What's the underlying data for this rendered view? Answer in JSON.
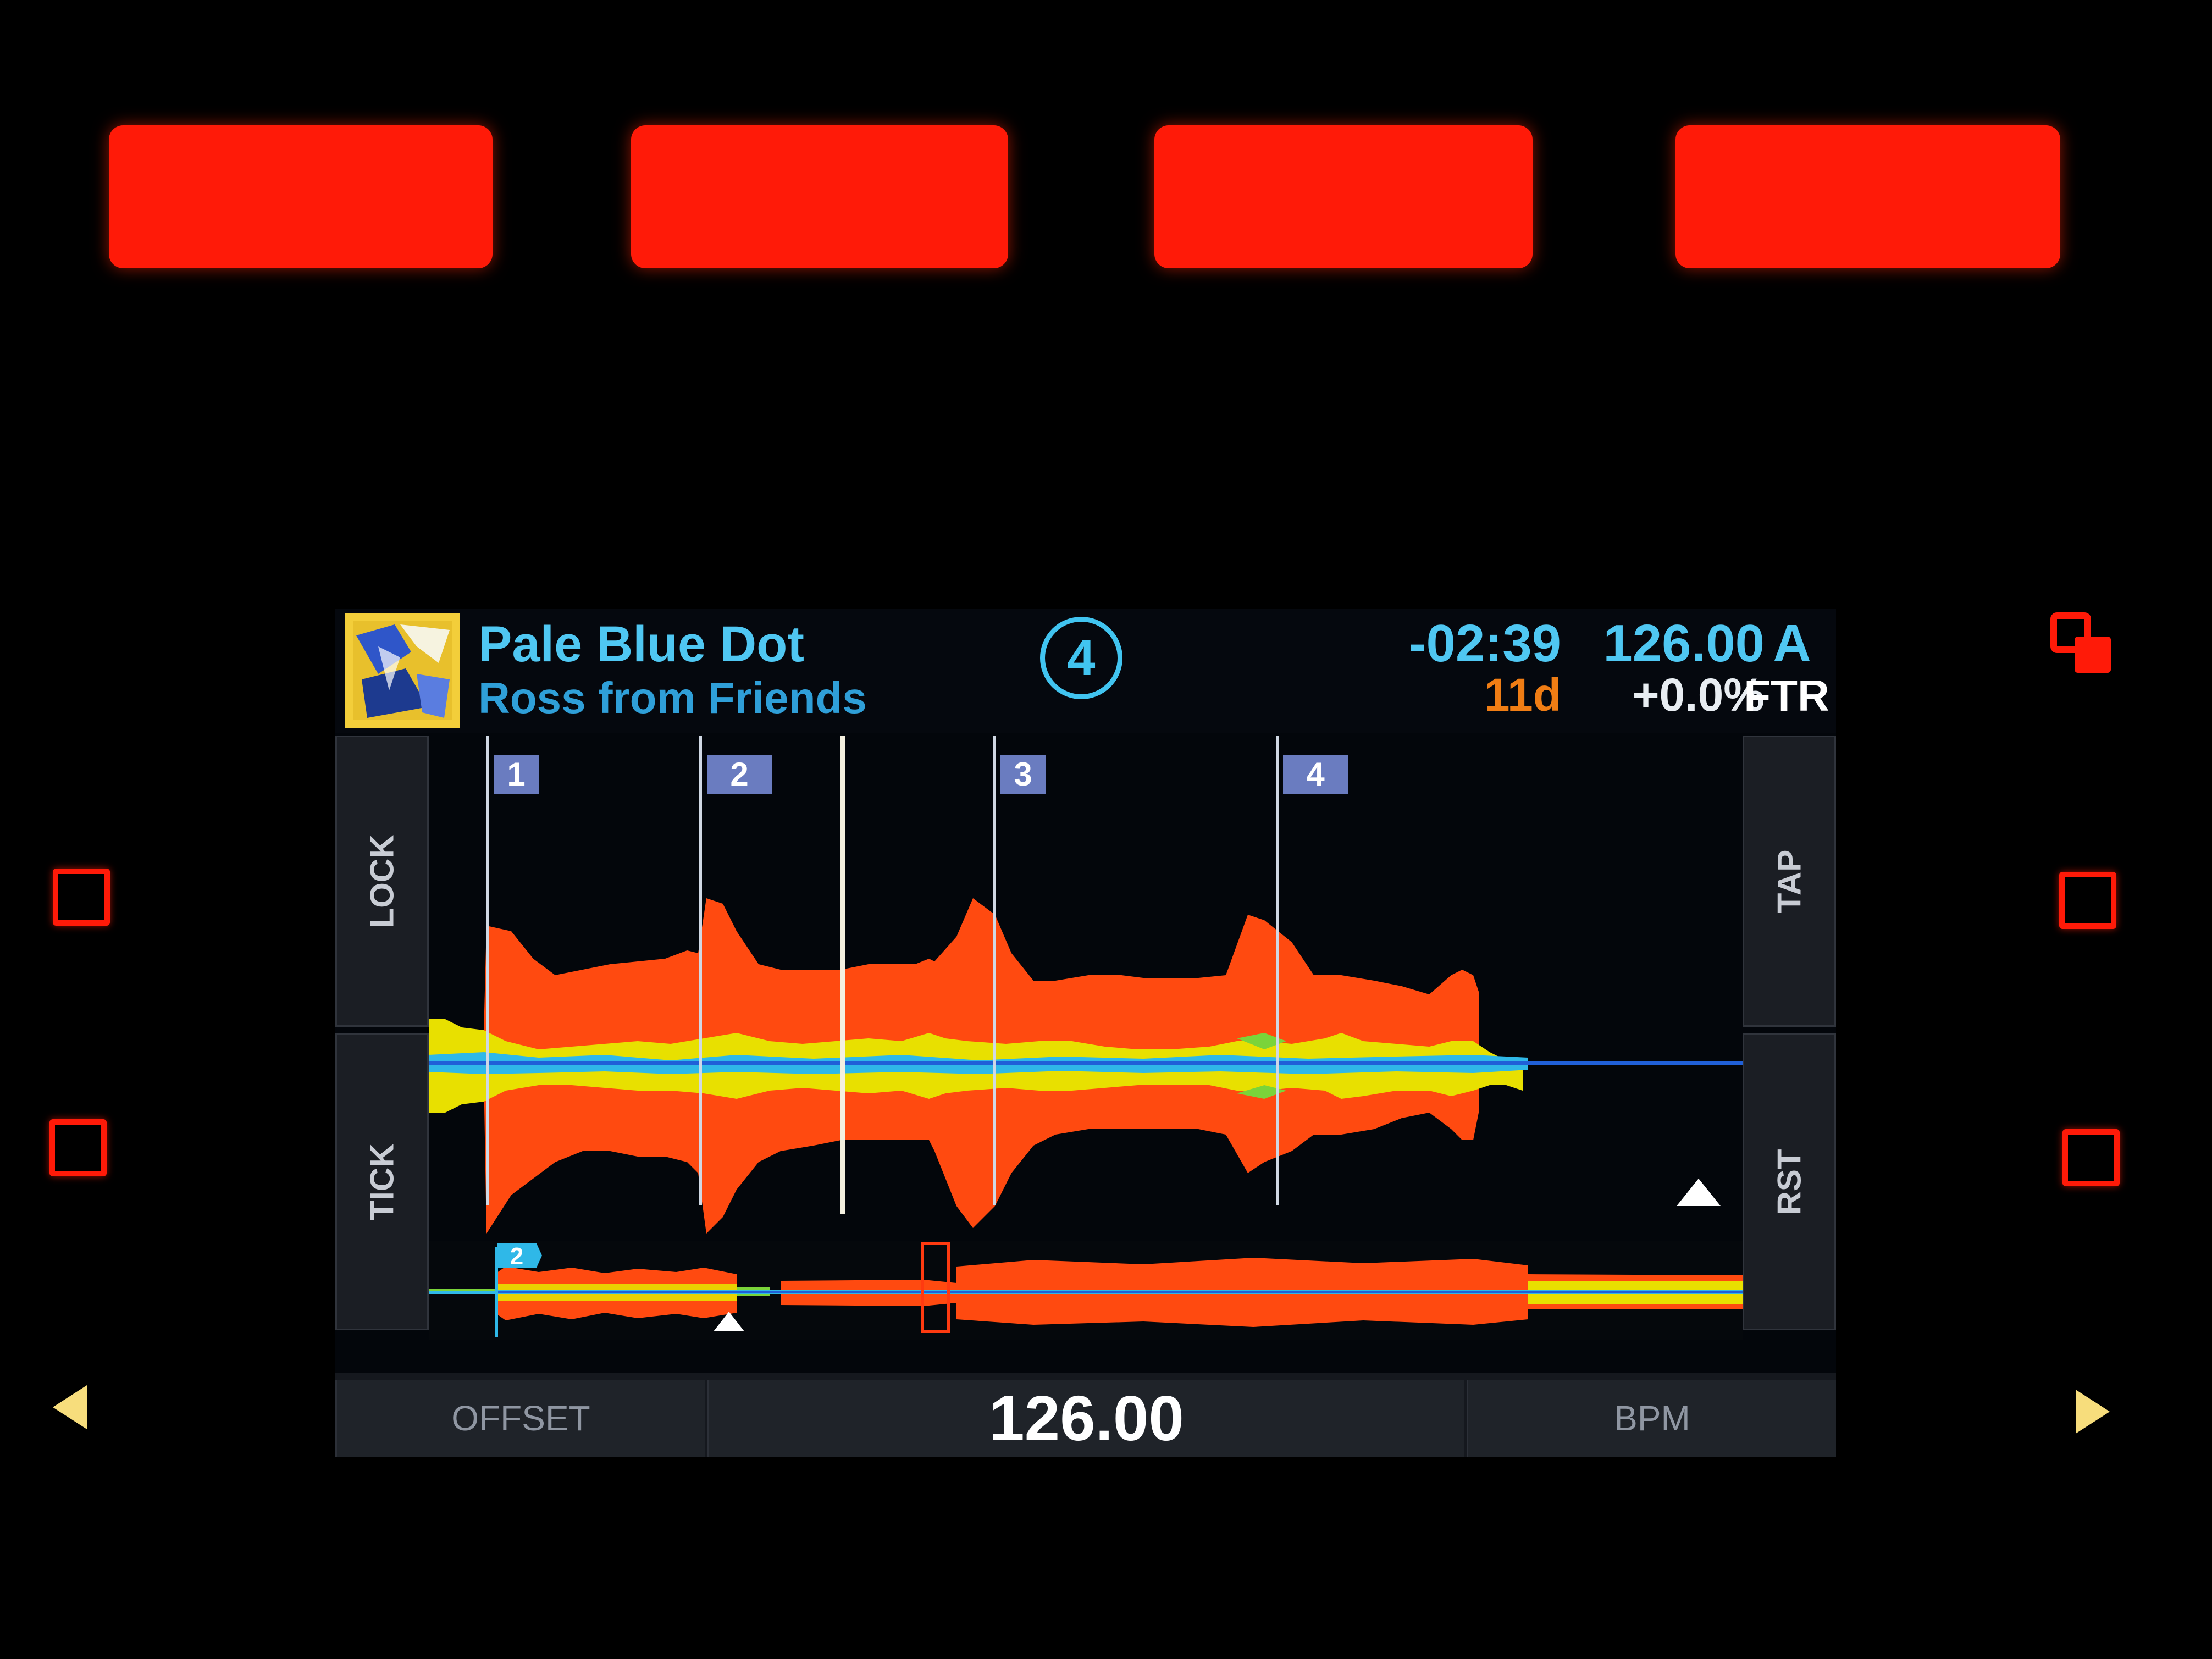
{
  "track": {
    "title": "Pale Blue Dot",
    "artist": "Ross from Friends",
    "deck_number": "4",
    "remaining_time": "-02:39",
    "tempo": "126.00",
    "deck_letter": "A",
    "key": "11d",
    "pitch": "+0.0%",
    "filter_label": "FTR"
  },
  "side_buttons": {
    "lock": "LOCK",
    "tick": "TICK",
    "tap": "TAP",
    "rst": "RST"
  },
  "beat_markers": [
    "1",
    "2",
    "3",
    "4"
  ],
  "overview": {
    "cue_flag": "2"
  },
  "footer": {
    "offset_label": "OFFSET",
    "bpm_value": "126.00",
    "bpm_label": "BPM"
  },
  "colors": {
    "pad": "#ff1a08",
    "accent": "#4fc7f2",
    "wave_orange": "#ff4a10",
    "wave_yellow": "#e8e000",
    "wave_blue": "#2fb8e8",
    "key": "#f07d14"
  }
}
